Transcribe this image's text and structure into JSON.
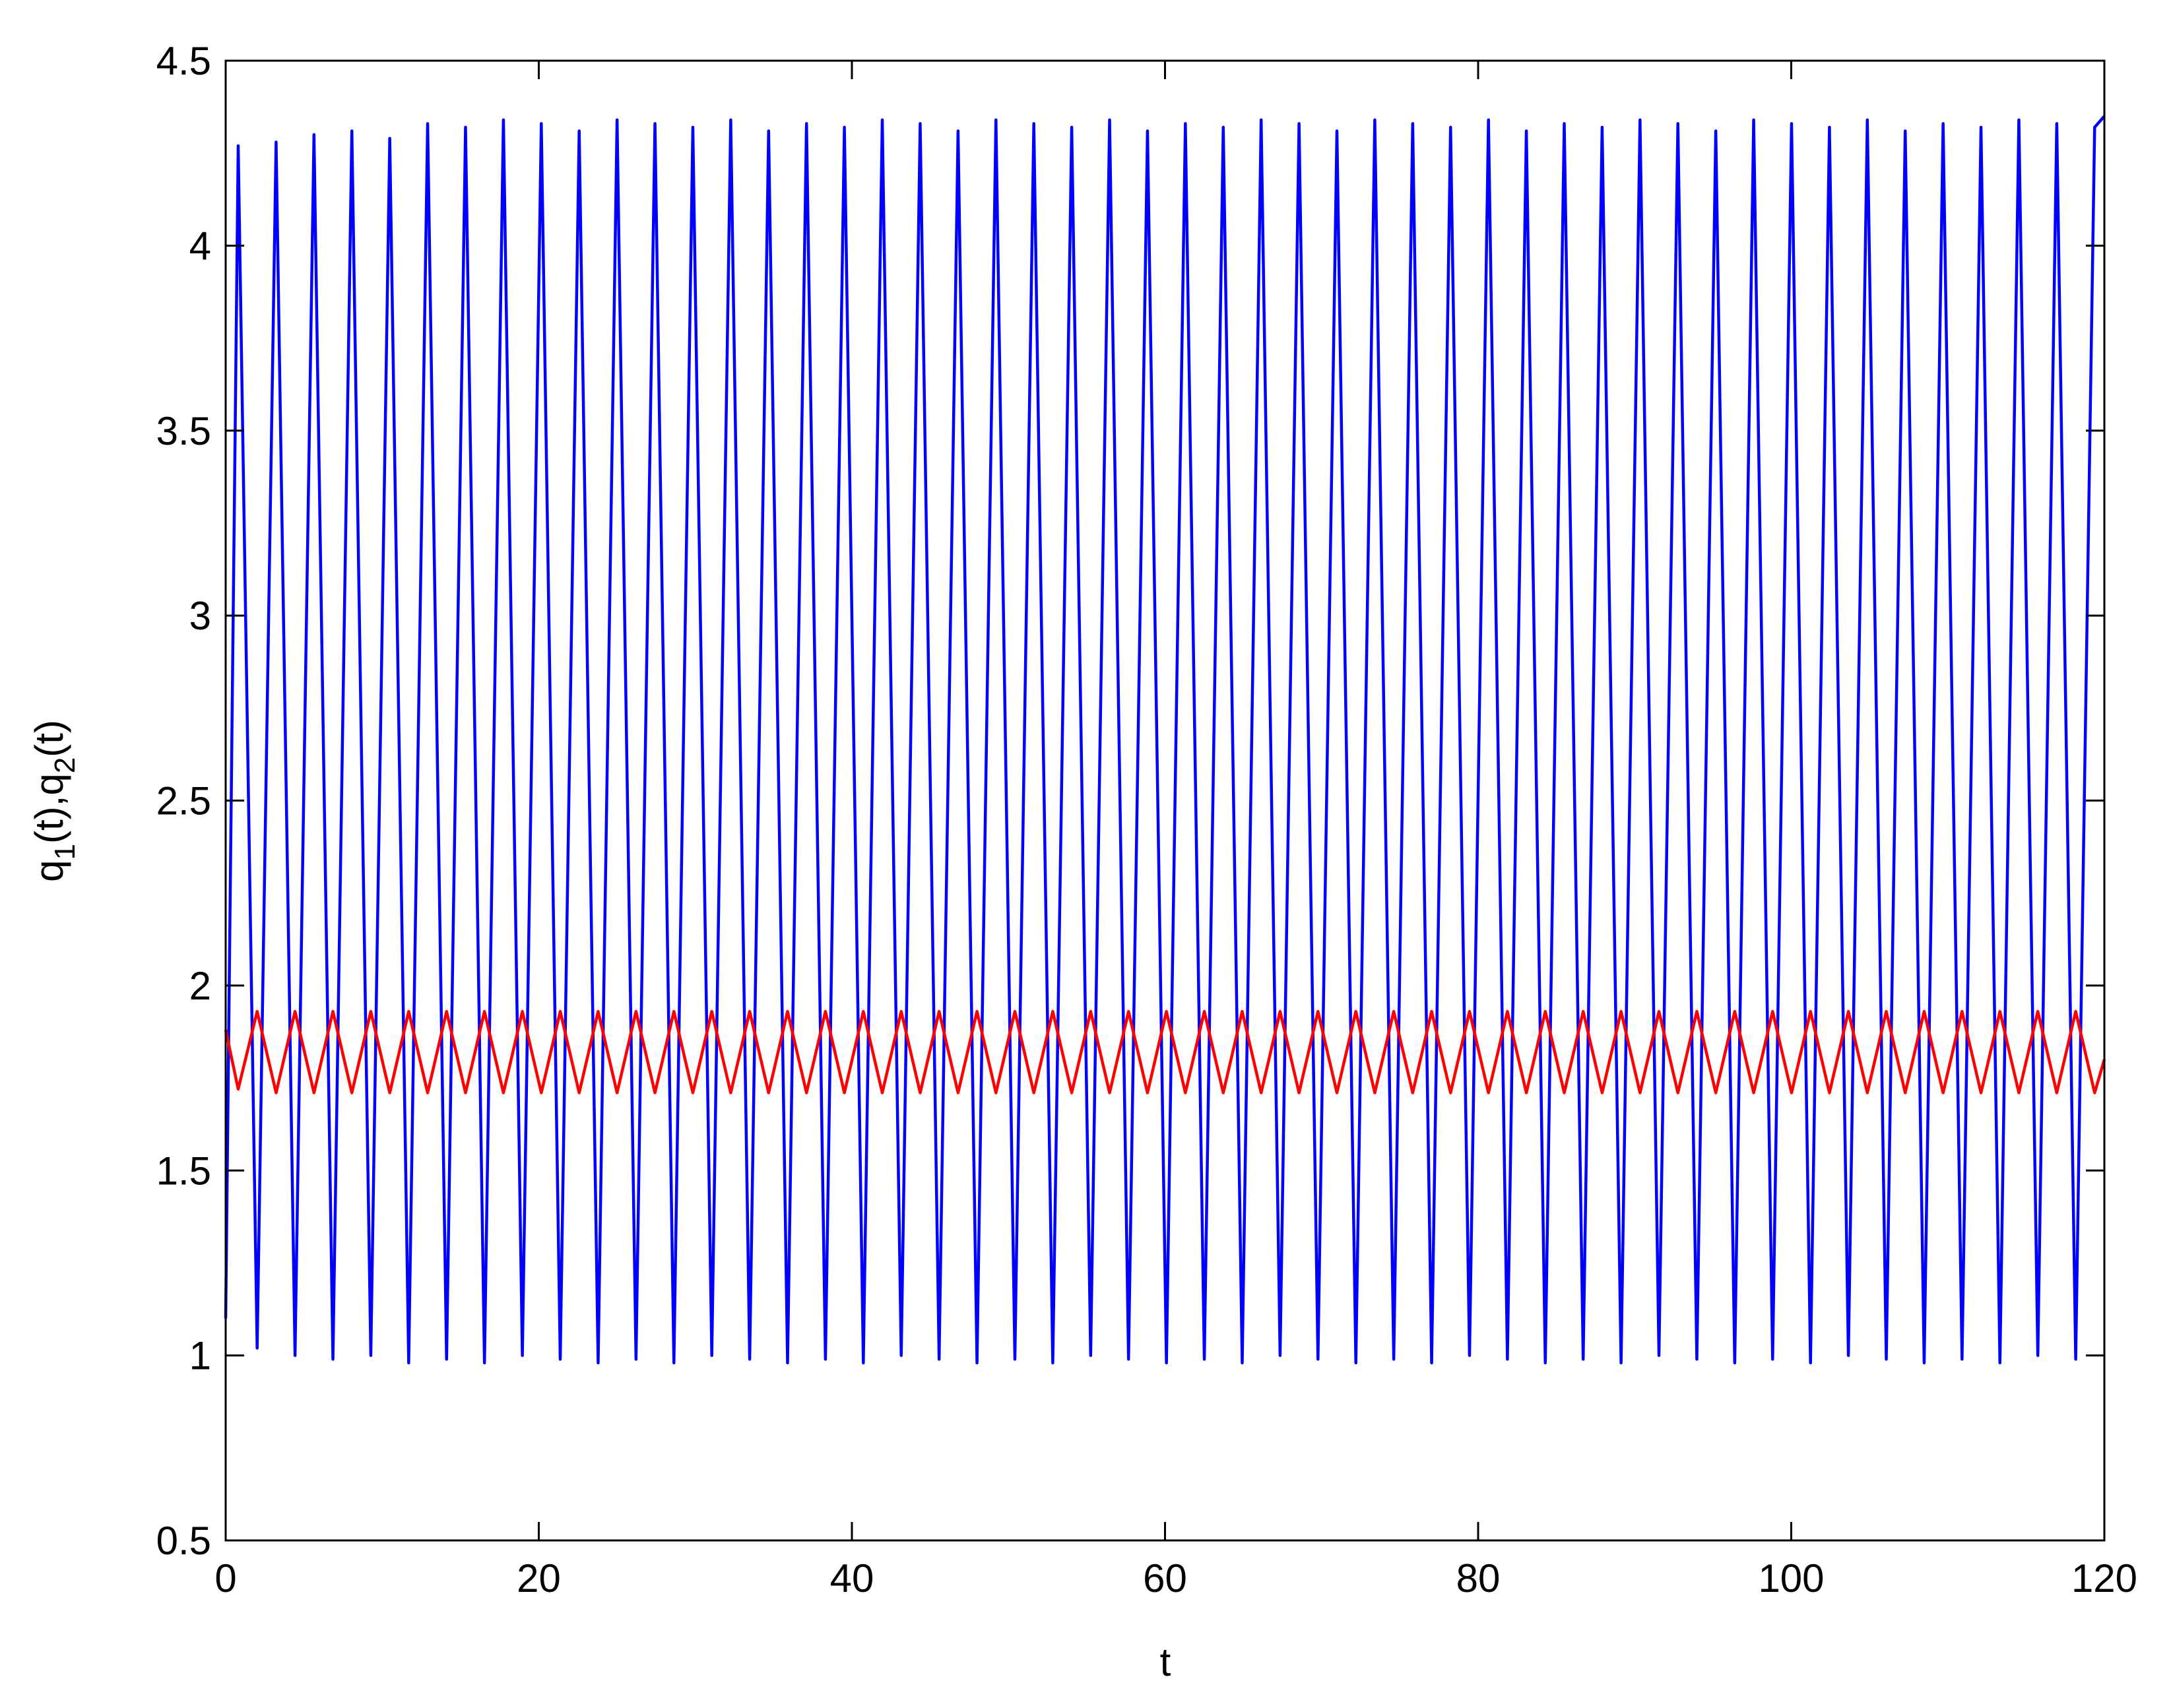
{
  "chart_data": {
    "type": "line",
    "xlabel": "t",
    "ylabel": [
      "q",
      "1",
      "(t),q",
      "2",
      "(t)"
    ],
    "xlim": [
      0,
      120
    ],
    "xticks": [
      0,
      20,
      40,
      60,
      80,
      100,
      120
    ],
    "ylim": [
      0.5,
      4.5
    ],
    "yticks": [
      0.5,
      1,
      1.5,
      2,
      2.5,
      3,
      3.5,
      4,
      4.5
    ],
    "x": [
      0,
      0.8,
      2.01,
      3.22,
      4.43,
      5.64,
      6.85,
      8.06,
      9.27,
      10.48,
      11.69,
      12.9,
      14.11,
      15.32,
      16.53,
      17.74,
      18.95,
      20.16,
      21.37,
      22.58,
      23.79,
      25,
      26.21,
      27.42,
      28.63,
      29.84,
      31.05,
      32.26,
      33.47,
      34.68,
      35.89,
      37.1,
      38.31,
      39.52,
      40.73,
      41.94,
      43.15,
      44.36,
      45.57,
      46.78,
      47.99,
      49.2,
      50.41,
      51.62,
      52.83,
      54.04,
      55.25,
      56.46,
      57.67,
      58.88,
      60.09,
      61.3,
      62.51,
      63.72,
      64.93,
      66.14,
      67.35,
      68.56,
      69.77,
      70.98,
      72.19,
      73.4,
      74.61,
      75.82,
      77.03,
      78.24,
      79.45,
      80.66,
      81.87,
      83.08,
      84.29,
      85.5,
      86.71,
      87.92,
      89.13,
      90.34,
      91.55,
      92.76,
      93.97,
      95.18,
      96.39,
      97.6,
      98.81,
      100.02,
      101.23,
      102.44,
      103.65,
      104.86,
      106.07,
      107.28,
      108.49,
      109.7,
      110.91,
      112.12,
      113.33,
      114.54,
      115.75,
      116.96,
      118.17,
      119.38,
      120
    ],
    "series": [
      {
        "color": "#0000ff",
        "values": [
          1.1,
          4.27,
          1.02,
          4.28,
          1.0,
          4.3,
          0.99,
          4.31,
          1.0,
          4.29,
          0.98,
          4.33,
          0.99,
          4.32,
          0.98,
          4.34,
          1.0,
          4.33,
          0.99,
          4.31,
          0.98,
          4.34,
          0.99,
          4.33,
          0.98,
          4.32,
          1.0,
          4.34,
          0.99,
          4.31,
          0.98,
          4.33,
          0.99,
          4.32,
          0.98,
          4.34,
          1.0,
          4.33,
          0.99,
          4.31,
          0.98,
          4.34,
          0.99,
          4.33,
          0.98,
          4.32,
          1.0,
          4.34,
          0.99,
          4.31,
          0.98,
          4.33,
          0.99,
          4.32,
          0.98,
          4.34,
          1.0,
          4.33,
          0.99,
          4.31,
          0.98,
          4.34,
          0.99,
          4.33,
          0.98,
          4.32,
          1.0,
          4.34,
          0.99,
          4.31,
          0.98,
          4.33,
          0.99,
          4.32,
          0.98,
          4.34,
          1.0,
          4.33,
          0.99,
          4.31,
          0.98,
          4.34,
          0.99,
          4.33,
          0.98,
          4.32,
          1.0,
          4.34,
          0.99,
          4.31,
          0.98,
          4.33,
          0.99,
          4.32,
          0.98,
          4.34,
          1.0,
          4.33,
          0.99,
          4.32,
          4.35
        ]
      },
      {
        "color": "#ff0000",
        "values": [
          1.88,
          1.72,
          1.93,
          1.71,
          1.93,
          1.71,
          1.93,
          1.71,
          1.93,
          1.71,
          1.93,
          1.71,
          1.93,
          1.71,
          1.93,
          1.71,
          1.93,
          1.71,
          1.93,
          1.71,
          1.93,
          1.71,
          1.93,
          1.71,
          1.93,
          1.71,
          1.93,
          1.71,
          1.93,
          1.71,
          1.93,
          1.71,
          1.93,
          1.71,
          1.93,
          1.71,
          1.93,
          1.71,
          1.93,
          1.71,
          1.93,
          1.71,
          1.93,
          1.71,
          1.93,
          1.71,
          1.93,
          1.71,
          1.93,
          1.71,
          1.93,
          1.71,
          1.93,
          1.71,
          1.93,
          1.71,
          1.93,
          1.71,
          1.93,
          1.71,
          1.93,
          1.71,
          1.93,
          1.71,
          1.93,
          1.71,
          1.93,
          1.71,
          1.93,
          1.71,
          1.93,
          1.71,
          1.93,
          1.71,
          1.93,
          1.71,
          1.93,
          1.71,
          1.93,
          1.71,
          1.93,
          1.71,
          1.93,
          1.71,
          1.93,
          1.71,
          1.93,
          1.71,
          1.93,
          1.71,
          1.93,
          1.71,
          1.93,
          1.71,
          1.93,
          1.71,
          1.93,
          1.71,
          1.93,
          1.71,
          1.8
        ]
      }
    ]
  }
}
